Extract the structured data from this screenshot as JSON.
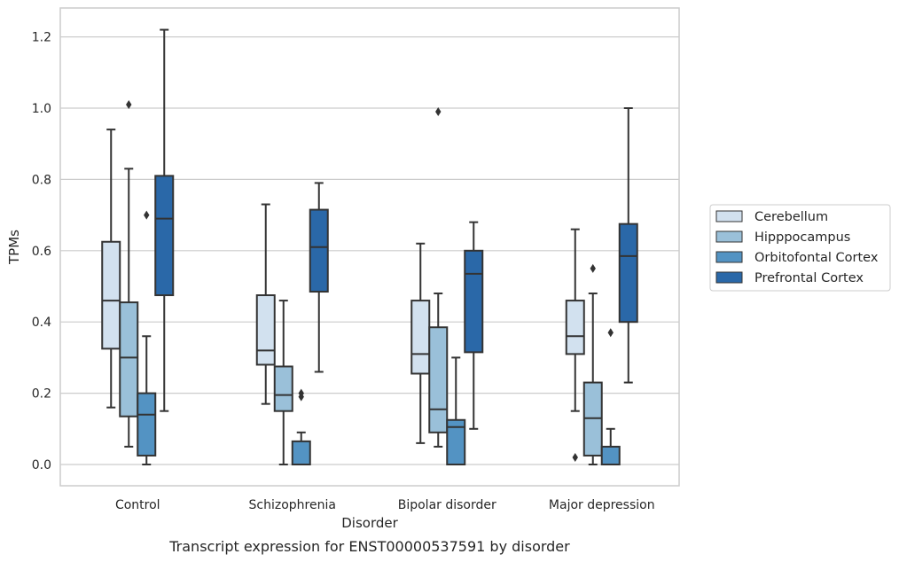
{
  "chart_data": {
    "type": "boxplot",
    "caption": "Transcript expression for ENST00000537591 by disorder",
    "xlabel": "Disorder",
    "ylabel": "TPMs",
    "ylim": [
      -0.06,
      1.28
    ],
    "yticks": [
      "0.0",
      "0.2",
      "0.4",
      "0.6",
      "0.8",
      "1.0",
      "1.2"
    ],
    "grid": "horizontal",
    "legend_position": "right",
    "categories": [
      "Control",
      "Schizophrenia",
      "Bipolar disorder",
      "Major depression"
    ],
    "series": [
      {
        "name": "Cerebellum",
        "color": "#d2e1ef",
        "boxes": [
          {
            "whislo": 0.16,
            "q1": 0.325,
            "med": 0.46,
            "q3": 0.625,
            "whishi": 0.94,
            "fliers": []
          },
          {
            "whislo": 0.17,
            "q1": 0.28,
            "med": 0.32,
            "q3": 0.475,
            "whishi": 0.73,
            "fliers": []
          },
          {
            "whislo": 0.06,
            "q1": 0.255,
            "med": 0.31,
            "q3": 0.46,
            "whishi": 0.62,
            "fliers": []
          },
          {
            "whislo": 0.15,
            "q1": 0.31,
            "med": 0.36,
            "q3": 0.46,
            "whishi": 0.66,
            "fliers": [
              0.02
            ]
          }
        ]
      },
      {
        "name": "Hipppocampus",
        "color": "#9ac0d9",
        "boxes": [
          {
            "whislo": 0.05,
            "q1": 0.135,
            "med": 0.3,
            "q3": 0.455,
            "whishi": 0.83,
            "fliers": [
              1.01
            ]
          },
          {
            "whislo": 0.0,
            "q1": 0.15,
            "med": 0.195,
            "q3": 0.275,
            "whishi": 0.46,
            "fliers": []
          },
          {
            "whislo": 0.05,
            "q1": 0.09,
            "med": 0.155,
            "q3": 0.385,
            "whishi": 0.48,
            "fliers": [
              0.99
            ]
          },
          {
            "whislo": 0.0,
            "q1": 0.025,
            "med": 0.13,
            "q3": 0.23,
            "whishi": 0.48,
            "fliers": [
              0.55
            ]
          }
        ]
      },
      {
        "name": "Orbitofontal Cortex",
        "color": "#5393c3",
        "boxes": [
          {
            "whislo": 0.0,
            "q1": 0.025,
            "med": 0.14,
            "q3": 0.2,
            "whishi": 0.36,
            "fliers": [
              0.7
            ]
          },
          {
            "whislo": 0.0,
            "q1": 0.0,
            "med": 0.0,
            "q3": 0.065,
            "whishi": 0.09,
            "fliers": [
              0.19,
              0.2
            ]
          },
          {
            "whislo": 0.0,
            "q1": 0.0,
            "med": 0.105,
            "q3": 0.125,
            "whishi": 0.3,
            "fliers": []
          },
          {
            "whislo": 0.0,
            "q1": 0.0,
            "med": 0.0,
            "q3": 0.05,
            "whishi": 0.1,
            "fliers": [
              0.37
            ]
          }
        ]
      },
      {
        "name": "Prefrontal Cortex",
        "color": "#2a68a8",
        "boxes": [
          {
            "whislo": 0.15,
            "q1": 0.475,
            "med": 0.69,
            "q3": 0.81,
            "whishi": 1.22,
            "fliers": []
          },
          {
            "whislo": 0.26,
            "q1": 0.485,
            "med": 0.61,
            "q3": 0.715,
            "whishi": 0.79,
            "fliers": []
          },
          {
            "whislo": 0.1,
            "q1": 0.315,
            "med": 0.535,
            "q3": 0.6,
            "whishi": 0.68,
            "fliers": []
          },
          {
            "whislo": 0.23,
            "q1": 0.4,
            "med": 0.585,
            "q3": 0.675,
            "whishi": 1.0,
            "fliers": []
          }
        ]
      }
    ]
  }
}
